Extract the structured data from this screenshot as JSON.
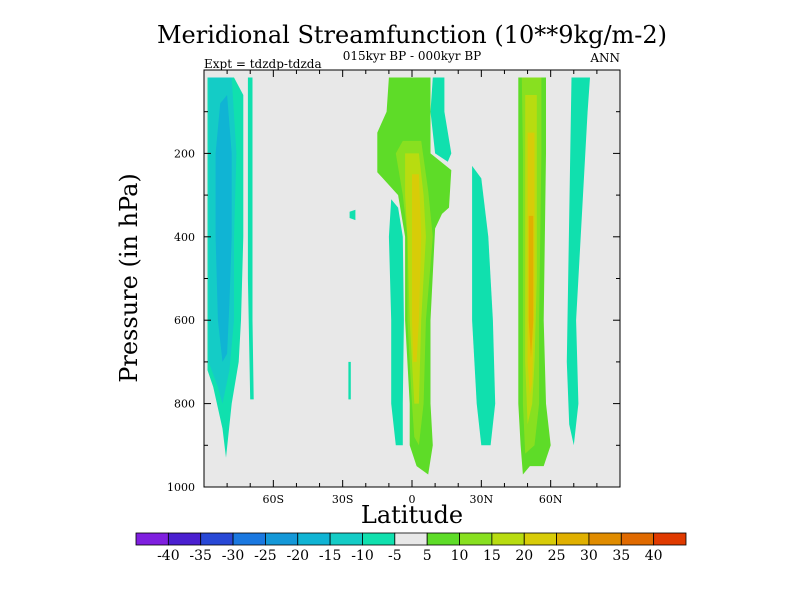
{
  "chart_data": {
    "type": "heatmap",
    "title": "Meridional Streamfunction (10**9kg/m-2)",
    "subtitle": "015kyr BP - 000kyr BP",
    "left_label": "Expt = tdzdp-tdzda",
    "right_label": "ANN",
    "xlabel": "Latitude",
    "ylabel": "Pressure (in hPa)",
    "xlim": [
      -90,
      90
    ],
    "ylim": [
      0,
      1000
    ],
    "x_ticks": [
      {
        "value": -60,
        "label": "60S"
      },
      {
        "value": -30,
        "label": "30S"
      },
      {
        "value": 0,
        "label": "0"
      },
      {
        "value": 30,
        "label": "30N"
      },
      {
        "value": 60,
        "label": "60N"
      }
    ],
    "y_ticks": [
      {
        "value": 200,
        "label": "200"
      },
      {
        "value": 400,
        "label": "400"
      },
      {
        "value": 600,
        "label": "600"
      },
      {
        "value": 800,
        "label": "800"
      },
      {
        "value": 1000,
        "label": "1000"
      }
    ],
    "colorbar": {
      "labels": [
        "-40",
        "-35",
        "-30",
        "-25",
        "-20",
        "-15",
        "-10",
        "-5",
        "5",
        "10",
        "15",
        "20",
        "25",
        "30",
        "35",
        "40"
      ],
      "colors": [
        "#7f1fdf",
        "#4a1fd0",
        "#2848d6",
        "#1a78e0",
        "#1498d8",
        "#10b4d4",
        "#14ccc6",
        "#10e0ae",
        "#e8e8e8",
        "#5edc28",
        "#88e020",
        "#b8dc10",
        "#d8cc08",
        "#e0b000",
        "#e08c00",
        "#e06a00",
        "#e03a00"
      ]
    },
    "regions": [
      {
        "level": 7,
        "pts": [
          [
            -88.5,
            18
          ],
          [
            -77,
            18
          ],
          [
            -73,
            60
          ],
          [
            -73,
            200
          ],
          [
            -73,
            400
          ],
          [
            -74,
            600
          ],
          [
            -75,
            700
          ],
          [
            -78,
            800
          ],
          [
            -80.5,
            930
          ],
          [
            -82,
            860
          ],
          [
            -86,
            760
          ],
          [
            -88.5,
            720
          ]
        ]
      },
      {
        "level": 6,
        "pts": [
          [
            -88,
            18
          ],
          [
            -78,
            18
          ],
          [
            -76,
            200
          ],
          [
            -77,
            400
          ],
          [
            -77,
            600
          ],
          [
            -79,
            720
          ],
          [
            -82,
            800
          ],
          [
            -84,
            760
          ],
          [
            -88,
            700
          ]
        ]
      },
      {
        "level": 5,
        "pts": [
          [
            -83,
            80
          ],
          [
            -80,
            60
          ],
          [
            -78,
            200
          ],
          [
            -78,
            400
          ],
          [
            -79,
            560
          ],
          [
            -80,
            680
          ],
          [
            -82,
            700
          ],
          [
            -84,
            600
          ],
          [
            -85,
            400
          ],
          [
            -85,
            200
          ]
        ]
      },
      {
        "level": 7,
        "pts": [
          [
            -71,
            18
          ],
          [
            -69,
            18
          ],
          [
            -69,
            600
          ],
          [
            -68.5,
            790
          ],
          [
            -70,
            790
          ],
          [
            -71,
            500
          ]
        ]
      },
      {
        "level": 7,
        "pts": [
          [
            -27,
            340
          ],
          [
            -24.5,
            335
          ],
          [
            -24.5,
            360
          ],
          [
            -27,
            355
          ]
        ]
      },
      {
        "level": 7,
        "pts": [
          [
            -27.5,
            700
          ],
          [
            -26.5,
            700
          ],
          [
            -26.5,
            790
          ],
          [
            -27.5,
            790
          ]
        ]
      },
      {
        "level": 7,
        "pts": [
          [
            -9,
            310
          ],
          [
            -6,
            330
          ],
          [
            -4,
            400
          ],
          [
            -3.5,
            600
          ],
          [
            -4,
            800
          ],
          [
            -4,
            900
          ],
          [
            -7,
            900
          ],
          [
            -9,
            800
          ],
          [
            -9,
            600
          ],
          [
            -10,
            400
          ]
        ]
      },
      {
        "level": 7,
        "pts": [
          [
            9,
            18
          ],
          [
            14,
            18
          ],
          [
            14,
            100
          ],
          [
            17,
            200
          ],
          [
            15.5,
            220
          ],
          [
            10,
            200
          ],
          [
            8,
            100
          ]
        ]
      },
      {
        "level": 7,
        "pts": [
          [
            26,
            230
          ],
          [
            30,
            260
          ],
          [
            33,
            400
          ],
          [
            35,
            600
          ],
          [
            36,
            800
          ],
          [
            34,
            900
          ],
          [
            30,
            900
          ],
          [
            28,
            800
          ],
          [
            26,
            600
          ],
          [
            26,
            300
          ]
        ]
      },
      {
        "level": 7,
        "pts": [
          [
            69,
            18
          ],
          [
            77,
            18
          ],
          [
            76,
            100
          ],
          [
            74,
            300
          ],
          [
            71,
            600
          ],
          [
            72,
            800
          ],
          [
            70,
            900
          ],
          [
            68,
            850
          ],
          [
            67,
            700
          ]
        ]
      },
      {
        "level": 9,
        "pts": [
          [
            -10,
            18
          ],
          [
            8,
            18
          ],
          [
            8,
            200
          ],
          [
            17,
            240
          ],
          [
            16,
            330
          ],
          [
            13,
            345
          ],
          [
            10,
            380
          ],
          [
            8,
            600
          ],
          [
            8,
            800
          ],
          [
            9,
            900
          ],
          [
            7,
            970
          ],
          [
            2,
            950
          ],
          [
            -1,
            900
          ],
          [
            -1,
            800
          ],
          [
            -3,
            600
          ],
          [
            -3,
            400
          ],
          [
            -6,
            300
          ],
          [
            -15,
            245
          ],
          [
            -15,
            150
          ],
          [
            -11,
            100
          ]
        ]
      },
      {
        "level": 10,
        "pts": [
          [
            -4,
            170
          ],
          [
            4,
            170
          ],
          [
            7,
            290
          ],
          [
            9,
            400
          ],
          [
            6,
            600
          ],
          [
            5,
            800
          ],
          [
            3,
            900
          ],
          [
            1,
            880
          ],
          [
            0,
            800
          ],
          [
            -2,
            600
          ],
          [
            -2,
            400
          ],
          [
            -4,
            300
          ],
          [
            -7,
            200
          ]
        ]
      },
      {
        "level": 11,
        "pts": [
          [
            -3,
            200
          ],
          [
            3,
            200
          ],
          [
            5,
            300
          ],
          [
            6,
            400
          ],
          [
            4,
            600
          ],
          [
            3,
            800
          ],
          [
            1,
            800
          ],
          [
            -1,
            600
          ],
          [
            -2,
            400
          ],
          [
            -3,
            300
          ]
        ]
      },
      {
        "level": 12,
        "pts": [
          [
            0,
            250
          ],
          [
            3,
            250
          ],
          [
            4,
            400
          ],
          [
            3,
            600
          ],
          [
            2,
            700
          ],
          [
            0.5,
            700
          ],
          [
            0,
            600
          ],
          [
            0,
            400
          ]
        ]
      },
      {
        "level": 9,
        "pts": [
          [
            46,
            18
          ],
          [
            58,
            18
          ],
          [
            58,
            200
          ],
          [
            57,
            600
          ],
          [
            58,
            800
          ],
          [
            60,
            900
          ],
          [
            57,
            950
          ],
          [
            51,
            950
          ],
          [
            48,
            970
          ],
          [
            47,
            900
          ],
          [
            46,
            800
          ],
          [
            46,
            600
          ],
          [
            46,
            400
          ],
          [
            46,
            200
          ]
        ]
      },
      {
        "level": 10,
        "pts": [
          [
            47.5,
            18
          ],
          [
            56,
            18
          ],
          [
            56,
            200
          ],
          [
            55,
            600
          ],
          [
            55,
            800
          ],
          [
            53,
            900
          ],
          [
            49,
            920
          ],
          [
            48,
            800
          ],
          [
            48,
            600
          ],
          [
            48,
            400
          ],
          [
            48,
            200
          ]
        ]
      },
      {
        "level": 11,
        "pts": [
          [
            49,
            60
          ],
          [
            54,
            60
          ],
          [
            54,
            300
          ],
          [
            54,
            500
          ],
          [
            53,
            700
          ],
          [
            52,
            800
          ],
          [
            50,
            850
          ],
          [
            49,
            700
          ],
          [
            49,
            500
          ],
          [
            49,
            300
          ]
        ]
      },
      {
        "level": 12,
        "pts": [
          [
            50,
            150
          ],
          [
            53,
            150
          ],
          [
            53,
            400
          ],
          [
            53,
            550
          ],
          [
            52,
            750
          ],
          [
            51,
            780
          ],
          [
            50,
            700
          ],
          [
            50,
            500
          ]
        ]
      },
      {
        "level": 13,
        "pts": [
          [
            50.5,
            350
          ],
          [
            52.5,
            350
          ],
          [
            52.5,
            600
          ],
          [
            51.5,
            690
          ],
          [
            50.5,
            600
          ]
        ]
      }
    ]
  }
}
